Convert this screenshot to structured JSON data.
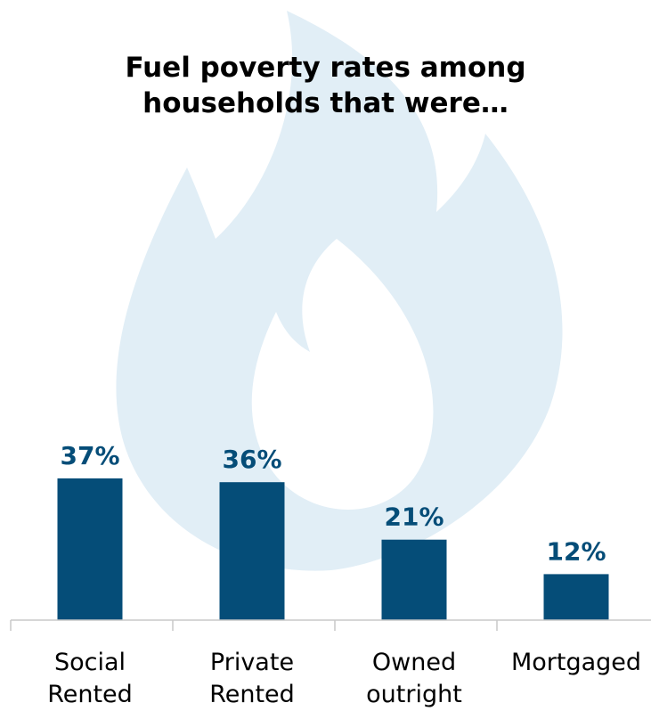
{
  "chart_data": {
    "type": "bar",
    "title_lines": [
      "Fuel poverty rates among",
      "households that were…"
    ],
    "categories": [
      [
        "Social",
        "Rented"
      ],
      [
        "Private",
        "Rented"
      ],
      [
        "Owned",
        "outright"
      ],
      [
        "Mortgaged"
      ]
    ],
    "values": [
      37,
      36,
      21,
      12
    ],
    "value_labels": [
      "37%",
      "36%",
      "21%",
      "12%"
    ],
    "ylim": [
      0,
      40
    ],
    "grid": false,
    "legend": "none"
  },
  "colors": {
    "bar": "#054d78",
    "value_label": "#054d78",
    "flame": "#e1eef6",
    "axis": "#c8c8c8",
    "text": "#000000"
  },
  "background_icon": "flame-icon"
}
